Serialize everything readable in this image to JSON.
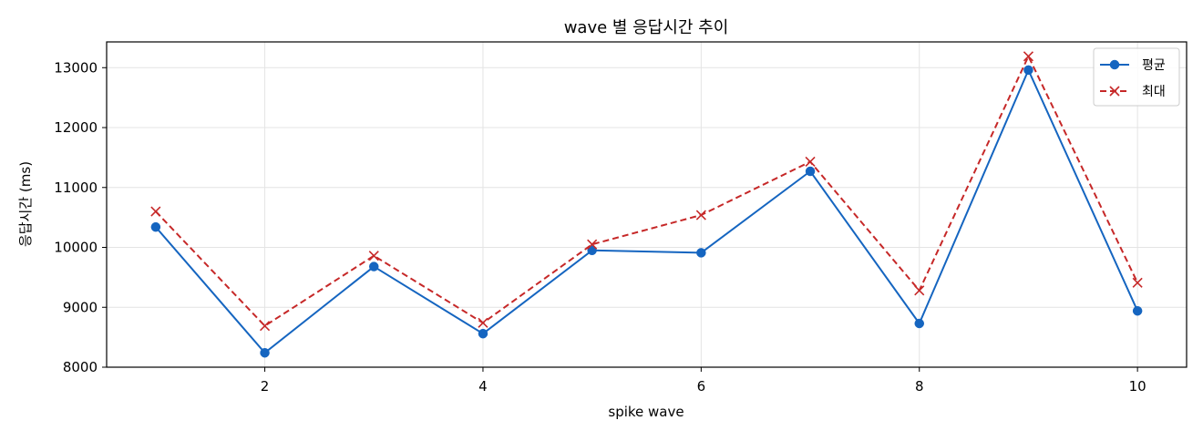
{
  "chart_data": {
    "type": "line",
    "title": "wave 별 응답시간 추이",
    "xlabel": "spike wave",
    "ylabel": "응답시간 (ms)",
    "x": [
      1,
      2,
      3,
      4,
      5,
      6,
      7,
      8,
      9,
      10
    ],
    "xlim": [
      0.55,
      10.45
    ],
    "ylim": [
      8000,
      13430
    ],
    "xticks": [
      2,
      4,
      6,
      8,
      10
    ],
    "yticks": [
      8000,
      9000,
      10000,
      11000,
      12000,
      13000
    ],
    "grid": true,
    "legend_position": "top-right",
    "series": [
      {
        "name": "평균",
        "color": "#1565c0",
        "line_style": "solid",
        "marker": "circle",
        "values": [
          10340,
          8240,
          9680,
          8560,
          9950,
          9910,
          11270,
          8730,
          12960,
          8940
        ]
      },
      {
        "name": "최대",
        "color": "#c62828",
        "line_style": "dashed",
        "marker": "x",
        "values": [
          10600,
          8690,
          9860,
          8740,
          10050,
          10540,
          11430,
          9280,
          13190,
          9410
        ]
      }
    ]
  }
}
